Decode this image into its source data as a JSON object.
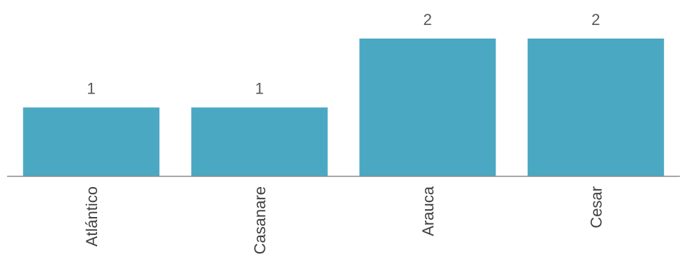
{
  "chart_data": {
    "type": "bar",
    "categories": [
      "Atlántico",
      "Casanare",
      "Arauca",
      "Cesar"
    ],
    "values": [
      1,
      1,
      2,
      2
    ],
    "data_labels": [
      "1",
      "1",
      "2",
      "2"
    ],
    "title": "",
    "xlabel": "",
    "ylabel": "",
    "ylim": [
      0,
      2
    ],
    "grid": false,
    "legend": "none",
    "tick_label_rotation": "vertical",
    "colors": {
      "bar": "#4BA8C2",
      "axis": "#8c8c8c",
      "data_label": "#595959",
      "tick_label": "#404040"
    }
  }
}
